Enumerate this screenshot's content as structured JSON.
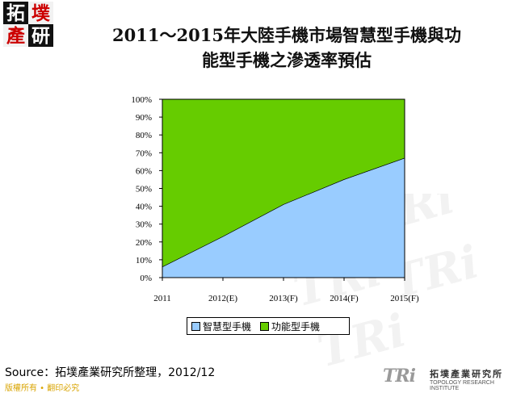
{
  "logo": {
    "chars": [
      "拓",
      "墣",
      "產",
      "研"
    ]
  },
  "title": "2011～2015年大陸手機市場智慧型手機與功能型手機之滲透率預估",
  "title_line1": "2011～2015年大陸手機市場智慧型手機與功",
  "title_line2": "能型手機之滲透率預估",
  "chart_data": {
    "type": "area",
    "stacked": true,
    "percent": true,
    "categories": [
      "2011",
      "2012(E)",
      "2013(F)",
      "2014(F)",
      "2015(F)"
    ],
    "series": [
      {
        "name": "智慧型手機",
        "values": [
          6,
          23,
          41,
          55,
          67
        ],
        "color": "#99ccff"
      },
      {
        "name": "功能型手機",
        "values": [
          94,
          77,
          59,
          45,
          33
        ],
        "color": "#66cc00"
      }
    ],
    "y_ticks": [
      "0%",
      "10%",
      "20%",
      "30%",
      "40%",
      "50%",
      "60%",
      "70%",
      "80%",
      "90%",
      "100%"
    ],
    "ylim": [
      0,
      100
    ],
    "grid": false,
    "legend_position": "bottom"
  },
  "source": "Source：拓墣產業研究所整理，2012/12",
  "copyright": "版權所有 • 翻印必究",
  "footer": {
    "brand": "TRi",
    "cn_name": "拓墣產業研究所",
    "en_name": "TOPOLOGY RESEARCH INSTITUTE"
  },
  "colors": {
    "smart": "#99ccff",
    "feature": "#66cc00"
  }
}
